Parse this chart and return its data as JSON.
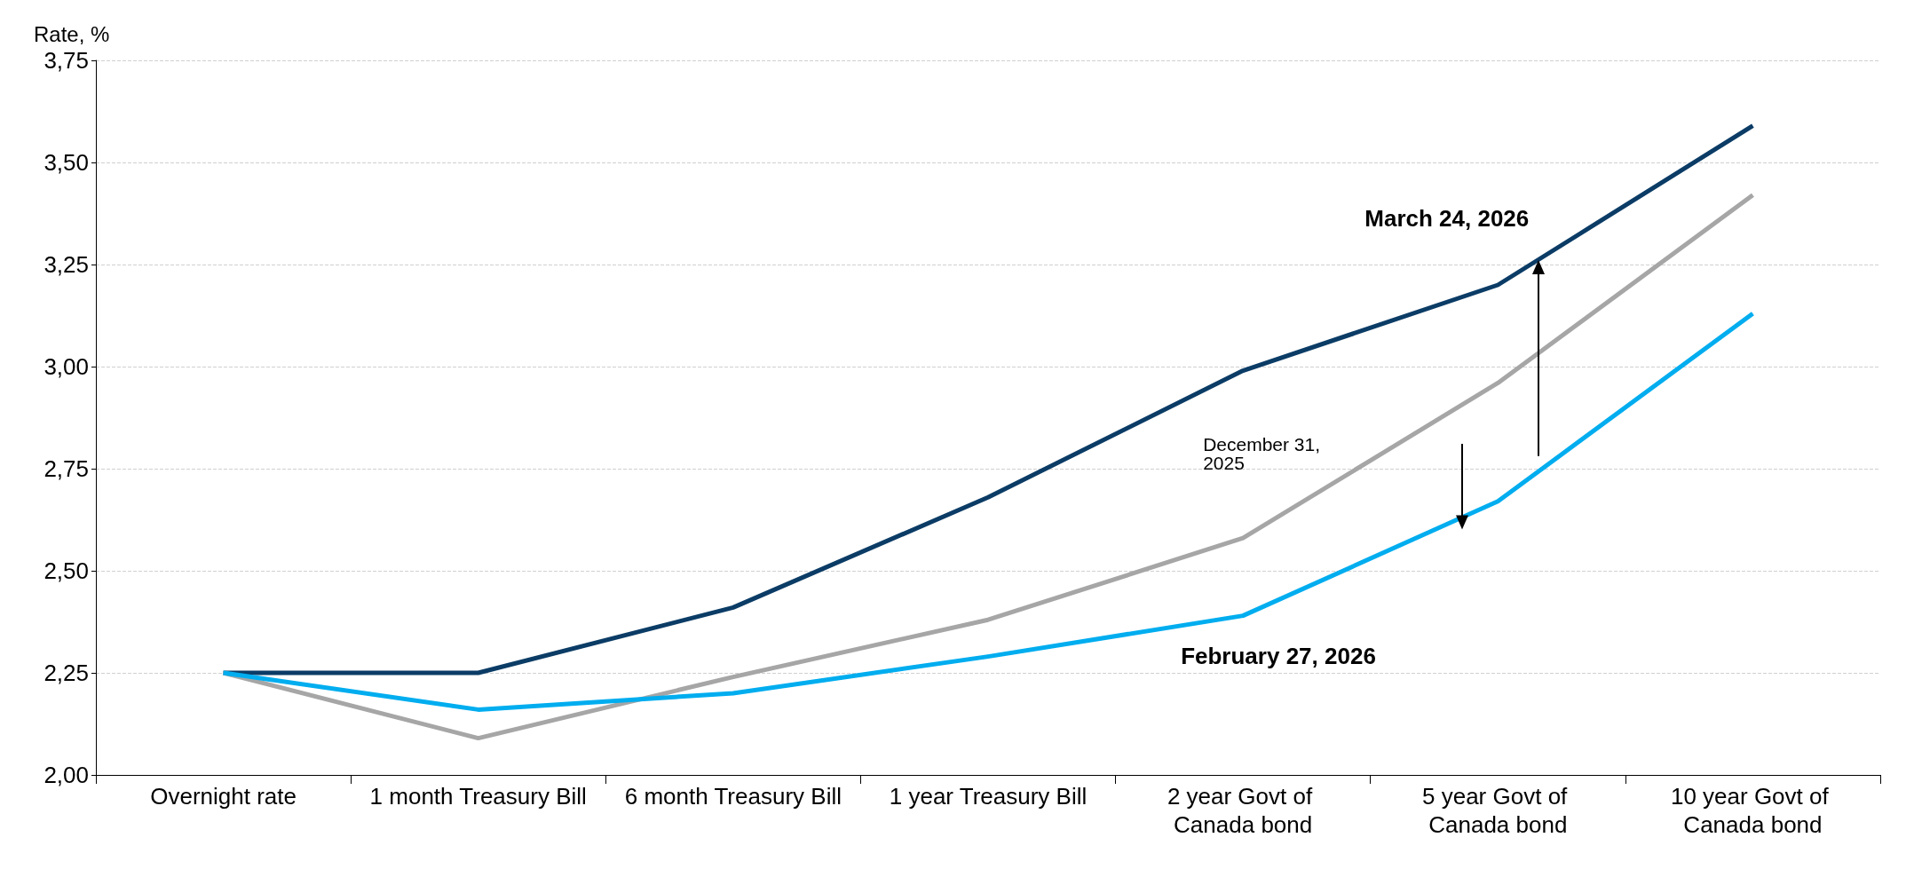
{
  "chart_data": {
    "type": "line",
    "ylabel": "Rate, %",
    "categories": [
      "Overnight rate",
      "1 month Treasury Bill",
      "6 month Treasury Bill",
      "1 year Treasury Bill",
      "2 year Govt of Canada bond",
      "5 year Govt of Canada bond",
      "10 year Govt of Canada bond"
    ],
    "series": [
      {
        "name": "March 24, 2026",
        "color": "#0b3c66",
        "values": [
          2.25,
          2.25,
          2.41,
          2.68,
          2.99,
          3.2,
          3.59
        ]
      },
      {
        "name": "December 31, 2025",
        "color": "#a6a6a6",
        "values": [
          2.25,
          2.09,
          2.24,
          2.38,
          2.58,
          2.96,
          3.42
        ]
      },
      {
        "name": "February 27, 2026",
        "color": "#00adef",
        "values": [
          2.25,
          2.16,
          2.2,
          2.29,
          2.39,
          2.67,
          3.13
        ]
      }
    ],
    "ylim": [
      2,
      3.75
    ],
    "yticks": [
      {
        "value": 2,
        "label": "2,00"
      },
      {
        "value": 2.25,
        "label": "2,25"
      },
      {
        "value": 2.5,
        "label": "2,50"
      },
      {
        "value": 2.75,
        "label": "2,75"
      },
      {
        "value": 3,
        "label": "3,00"
      },
      {
        "value": 3.25,
        "label": "3,25"
      },
      {
        "value": 3.5,
        "label": "3,50"
      },
      {
        "value": 3.75,
        "label": "3,75"
      }
    ],
    "grid": "y",
    "legend": false,
    "marker": "none",
    "line_style": "solid"
  }
}
